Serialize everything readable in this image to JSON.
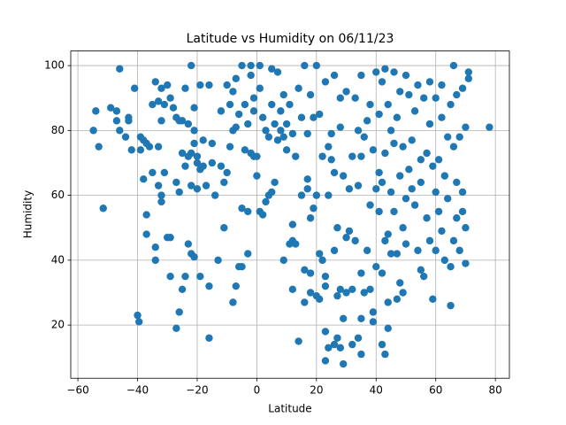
{
  "chart_data": {
    "type": "scatter",
    "title": "Latitude vs Humidity on 06/11/23",
    "x_label": "Latitude",
    "y_label": "Humidity",
    "color": "#1f77b4",
    "grid": true,
    "xlim": [
      -62.4,
      84.7
    ],
    "ylim": [
      3.6,
      104.5
    ],
    "xticks": [
      {
        "value": -60,
        "label": "−60"
      },
      {
        "value": -40,
        "label": "−40"
      },
      {
        "value": -20,
        "label": "−20"
      },
      0,
      20,
      40,
      60,
      80
    ],
    "yticks": [
      20,
      40,
      60,
      80,
      100
    ],
    "x": [
      -54.8,
      -54,
      -53,
      -51.5,
      -49,
      -47,
      -46,
      -47,
      -46,
      -44,
      -43,
      -43,
      -42,
      -41,
      -40,
      -39.5,
      -39,
      -39,
      -38,
      -38,
      -37,
      -37,
      -37,
      -36,
      -35,
      -35,
      -34,
      -34,
      -34,
      -33,
      -33,
      -33,
      -32,
      -32,
      -32,
      -32,
      -31,
      -31,
      -30,
      -30,
      -29,
      -29,
      -29,
      -28,
      -27,
      -27,
      -27,
      -26,
      -26,
      -26,
      -25,
      -25,
      -25,
      -24,
      -24,
      -24,
      -23,
      -23,
      -23,
      -22,
      -22,
      -22,
      -22,
      -21,
      -21,
      -21,
      -21,
      -20,
      -20,
      -20,
      -19,
      -19,
      -19,
      -18,
      -18,
      -17,
      -16,
      -16,
      -16,
      -15,
      -15,
      -14,
      -13,
      -12,
      -12,
      -11,
      -11,
      -10,
      -10,
      -9,
      -9,
      -8,
      -8,
      -8,
      -7,
      -7,
      -7,
      -6,
      -6,
      -5,
      -5,
      -5,
      -4,
      -4,
      -3,
      -3,
      -3,
      -2,
      -2,
      -2,
      -1,
      -1,
      -1,
      0,
      0,
      1,
      1,
      1,
      2,
      2,
      3,
      3,
      4,
      4,
      5,
      5,
      5,
      6,
      6,
      7,
      7,
      8,
      8,
      9,
      9,
      9,
      10,
      10,
      11,
      11,
      12,
      12,
      12,
      12,
      13,
      13,
      14,
      14,
      15,
      15,
      16,
      16,
      16,
      17,
      17,
      17,
      18,
      18,
      18,
      18,
      19,
      19,
      20,
      20,
      20,
      21,
      21,
      21,
      22,
      22,
      23,
      23,
      23,
      23,
      23,
      24,
      24,
      24,
      25,
      25,
      26,
      26,
      26,
      26,
      27,
      27,
      27,
      28,
      28,
      28,
      28,
      29,
      29,
      29,
      30,
      30,
      30,
      31,
      31,
      32,
      32,
      32,
      33,
      33,
      34,
      34,
      34,
      35,
      35,
      35,
      35,
      35,
      36,
      36,
      37,
      37,
      38,
      38,
      38,
      39,
      39,
      39,
      40,
      40,
      40,
      41,
      41,
      41,
      42,
      42,
      42,
      42,
      43,
      43,
      43,
      43,
      44,
      44,
      44,
      44,
      45,
      45,
      45,
      46,
      46,
      46,
      47,
      47,
      47,
      48,
      48,
      48,
      49,
      49,
      49,
      50,
      50,
      50,
      51,
      51,
      52,
      52,
      53,
      53,
      54,
      54,
      55,
      55,
      55,
      56,
      56,
      57,
      57,
      58,
      58,
      58,
      59,
      59,
      60,
      60,
      60,
      61,
      61,
      62,
      62,
      62,
      63,
      63,
      64,
      64,
      65,
      65,
      65,
      66,
      66,
      66,
      67,
      67,
      67,
      68,
      68,
      69,
      69,
      69,
      70,
      70,
      70,
      71,
      71,
      78
    ],
    "values": [
      80,
      86,
      75,
      56,
      87,
      86,
      99,
      83,
      80,
      78,
      84,
      83,
      74,
      93,
      23,
      21,
      78,
      74,
      77,
      65,
      54,
      48,
      76,
      75,
      67,
      88,
      95,
      40,
      44,
      63,
      75,
      89,
      83,
      93,
      60,
      58,
      67,
      88,
      47,
      94,
      35,
      47,
      90,
      87,
      19,
      64,
      84,
      83,
      24,
      61,
      31,
      73,
      83,
      35,
      93,
      69,
      45,
      72,
      82,
      42,
      100,
      63,
      73,
      41,
      76,
      80,
      87,
      62,
      70,
      72,
      35,
      68,
      94,
      77,
      69,
      63,
      16,
      32,
      94,
      70,
      76,
      60,
      40,
      69,
      86,
      50,
      64,
      67,
      94,
      75,
      88,
      27,
      80,
      92,
      32,
      81,
      96,
      38,
      85,
      38,
      56,
      100,
      74,
      88,
      42,
      55,
      82,
      100,
      73,
      97,
      72,
      90,
      86,
      66,
      72,
      55,
      93,
      100,
      54,
      84,
      58,
      80,
      60,
      78,
      61,
      99,
      88,
      64,
      82,
      77,
      98,
      80,
      86,
      40,
      91,
      78,
      74,
      82,
      45,
      88,
      31,
      51,
      46,
      79,
      45,
      72,
      15,
      93,
      60,
      84,
      27,
      37,
      100,
      62,
      65,
      79,
      30,
      53,
      36,
      91,
      56,
      84,
      29,
      100,
      60,
      42,
      28,
      85,
      72,
      40,
      9,
      18,
      32,
      35,
      95,
      13,
      60,
      75,
      71,
      79,
      14,
      43,
      67,
      97,
      16,
      29,
      50,
      13,
      31,
      81,
      90,
      8,
      22,
      66,
      30,
      47,
      92,
      49,
      62,
      14,
      31,
      72,
      46,
      90,
      16,
      63,
      80,
      11,
      22,
      36,
      72,
      97,
      30,
      78,
      43,
      83,
      31,
      57,
      88,
      21,
      24,
      74,
      38,
      62,
      98,
      55,
      67,
      85,
      14,
      36,
      64,
      95,
      11,
      46,
      73,
      99,
      19,
      27,
      48,
      88,
      42,
      61,
      80,
      55,
      76,
      98,
      42,
      28,
      84,
      33,
      66,
      92,
      30,
      50,
      75,
      45,
      59,
      97,
      68,
      91,
      62,
      77,
      57,
      86,
      43,
      94,
      37,
      64,
      71,
      35,
      90,
      53,
      73,
      46,
      82,
      95,
      28,
      69,
      43,
      61,
      90,
      55,
      71,
      49,
      84,
      94,
      40,
      66,
      59,
      78,
      26,
      38,
      88,
      46,
      75,
      100,
      53,
      64,
      91,
      43,
      78,
      55,
      61,
      93,
      39,
      50,
      81,
      98,
      96,
      81
    ]
  }
}
